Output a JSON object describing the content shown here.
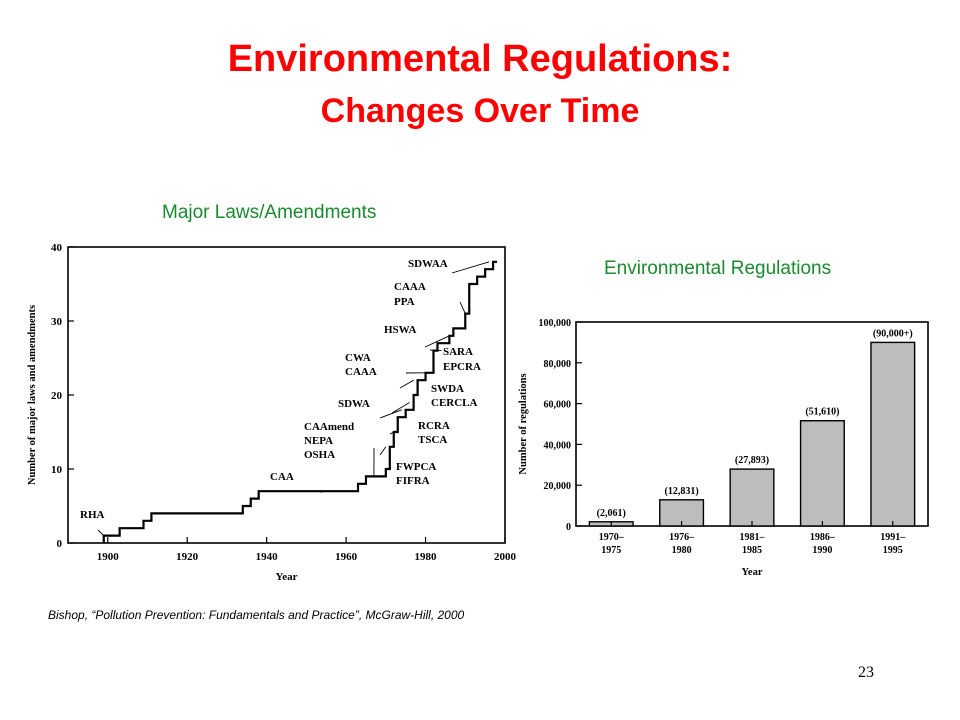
{
  "slide": {
    "title_line1": "Environmental Regulations:",
    "title_line2": "Changes Over Time",
    "subtitle_left": "Major Laws/Amendments",
    "subtitle_right": "Environmental Regulations",
    "citation": "Bishop, “Pollution Prevention: Fundamentals and Practice”, McGraw-Hill, 2000",
    "page_number": "23"
  },
  "colors": {
    "title": "#ff0000",
    "subtitle": "#1a8a2e",
    "bar_fill": "#bdbdbd"
  },
  "chart_data": [
    {
      "type": "line",
      "step": true,
      "xlabel": "Year",
      "ylabel": "Number of major laws and amendments",
      "xlim": [
        1890,
        2000
      ],
      "ylim": [
        0,
        40
      ],
      "x_ticks": [
        1900,
        1920,
        1940,
        1960,
        1980,
        2000
      ],
      "y_ticks": [
        0,
        10,
        20,
        30,
        40
      ],
      "x": [
        1899,
        1902,
        1903,
        1909,
        1911,
        1932,
        1934,
        1936,
        1938,
        1955,
        1963,
        1965,
        1970,
        1971,
        1972,
        1973,
        1975,
        1977,
        1978,
        1980,
        1982,
        1983,
        1986,
        1987,
        1990,
        1991,
        1993,
        1995,
        1997
      ],
      "y": [
        1,
        1,
        2,
        3,
        4,
        4,
        5,
        6,
        7,
        7,
        8,
        9,
        10,
        13,
        15,
        17,
        18,
        20,
        22,
        23,
        26,
        27,
        28,
        29,
        31,
        35,
        36,
        37,
        38
      ],
      "annotations": [
        {
          "text": "RHA",
          "x": 1899,
          "y": 1
        },
        {
          "text": "CAA",
          "x": 1955,
          "y": 7
        },
        {
          "text": "CAAmend",
          "x": 1967,
          "y": 9
        },
        {
          "text": "NEPA",
          "x": 1970,
          "y": 10
        },
        {
          "text": "OSHA",
          "x": 1970,
          "y": 13
        },
        {
          "text": "FWPCA",
          "x": 1972,
          "y": 15
        },
        {
          "text": "FIFRA",
          "x": 1972,
          "y": 15
        },
        {
          "text": "SDWA",
          "x": 1974,
          "y": 18
        },
        {
          "text": "RCRA",
          "x": 1976,
          "y": 19
        },
        {
          "text": "TSCA",
          "x": 1976,
          "y": 19
        },
        {
          "text": "CWA",
          "x": 1977,
          "y": 22
        },
        {
          "text": "CAAA",
          "x": 1977,
          "y": 22
        },
        {
          "text": "SWDA",
          "x": 1980,
          "y": 23
        },
        {
          "text": "CERCLA",
          "x": 1980,
          "y": 23
        },
        {
          "text": "HSWA",
          "x": 1984,
          "y": 26
        },
        {
          "text": "SARA",
          "x": 1986,
          "y": 28
        },
        {
          "text": "EPCRA",
          "x": 1986,
          "y": 28
        },
        {
          "text": "CAAA",
          "x": 1990,
          "y": 31
        },
        {
          "text": "PPA",
          "x": 1990,
          "y": 31
        },
        {
          "text": "SDWAA",
          "x": 1996,
          "y": 38
        }
      ]
    },
    {
      "type": "bar",
      "xlabel": "Year",
      "ylabel": "Number of regulations",
      "ylim": [
        0,
        100000
      ],
      "y_ticks": [
        0,
        20000,
        40000,
        60000,
        80000,
        100000
      ],
      "y_tick_labels": [
        "0",
        "20,000",
        "40,000",
        "60,000",
        "80,000",
        "100,000"
      ],
      "categories": [
        [
          "1970–",
          "1975"
        ],
        [
          "1976–",
          "1980"
        ],
        [
          "1981–",
          "1985"
        ],
        [
          "1986–",
          "1990"
        ],
        [
          "1991–",
          "1995"
        ]
      ],
      "values": [
        2061,
        12831,
        27893,
        51610,
        90000
      ],
      "value_labels": [
        "(2,061)",
        "(12,831)",
        "(27,893)",
        "(51,610)",
        "(90,000+)"
      ]
    }
  ]
}
